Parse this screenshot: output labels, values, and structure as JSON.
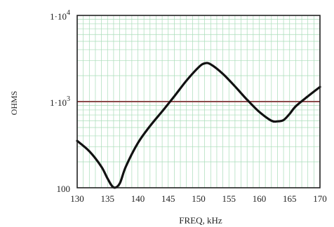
{
  "chart_data": {
    "type": "line",
    "title": "",
    "xlabel": "FREQ, kHz",
    "ylabel": "OHMS",
    "xlim": [
      130,
      170
    ],
    "ylim": [
      100,
      10000
    ],
    "yscale": "log",
    "grid": true,
    "x_ticks": [
      130,
      135,
      140,
      145,
      150,
      155,
      160,
      165,
      170
    ],
    "x_tick_labels": [
      "130",
      "135",
      "140",
      "145",
      "150",
      "155",
      "160",
      "165",
      "170"
    ],
    "y_ticks": [
      {
        "value": 100,
        "base": "100",
        "exp": ""
      },
      {
        "value": 1000,
        "base": "1·10",
        "exp": "3"
      },
      {
        "value": 10000,
        "base": "1·10",
        "exp": "4"
      }
    ],
    "reference_line": {
      "y": 1000,
      "color": "#8b4a4a"
    },
    "series": [
      {
        "name": "",
        "color": "#111111",
        "points": [
          [
            130,
            350
          ],
          [
            132,
            265
          ],
          [
            134,
            175
          ],
          [
            135,
            128
          ],
          [
            136,
            101
          ],
          [
            137,
            112
          ],
          [
            138,
            175
          ],
          [
            140,
            330
          ],
          [
            142,
            520
          ],
          [
            144,
            770
          ],
          [
            146,
            1150
          ],
          [
            148,
            1750
          ],
          [
            150,
            2500
          ],
          [
            151,
            2780
          ],
          [
            152,
            2700
          ],
          [
            154,
            2100
          ],
          [
            156,
            1500
          ],
          [
            158,
            1050
          ],
          [
            160,
            760
          ],
          [
            162,
            600
          ],
          [
            163,
            590
          ],
          [
            164,
            610
          ],
          [
            165,
            720
          ],
          [
            166,
            880
          ],
          [
            168,
            1150
          ],
          [
            170,
            1480
          ]
        ]
      }
    ],
    "colors": {
      "grid": "#a8dcb8",
      "frame": "#222222",
      "background": "#ffffff"
    }
  }
}
